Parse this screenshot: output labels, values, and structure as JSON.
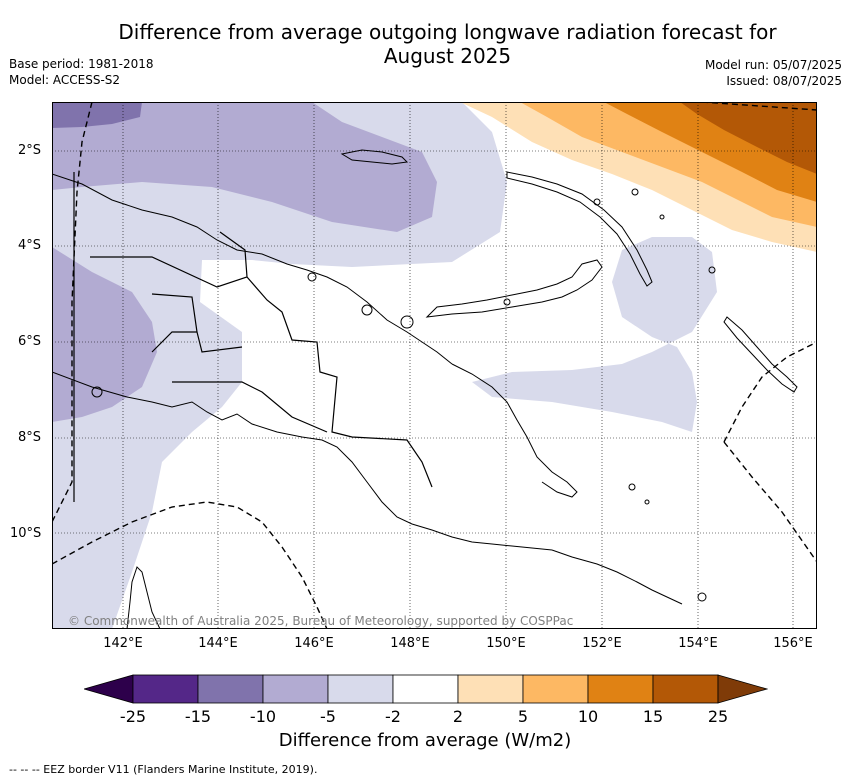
{
  "title_line1": "Difference from average outgoing longwave radiation forecast for",
  "title_line2": "August 2025",
  "base_period": "Base period: 1981-2018",
  "model": "Model: ACCESS-S2",
  "model_run": "Model run: 05/07/2025",
  "issued": "Issued: 08/07/2025",
  "lat_labels": [
    "2°S",
    "4°S",
    "6°S",
    "8°S",
    "10°S"
  ],
  "lon_labels": [
    "142°E",
    "144°E",
    "146°E",
    "148°E",
    "150°E",
    "152°E",
    "154°E",
    "156°E"
  ],
  "colorbar": {
    "title": "Difference from average (W/m2)",
    "ticks": [
      "-25",
      "-15",
      "-10",
      "-5",
      "-2",
      "2",
      "5",
      "10",
      "15",
      "25"
    ],
    "colors": [
      "#2d004b",
      "#542788",
      "#8073ac",
      "#b2abd2",
      "#d8daeb",
      "#ffffff",
      "#fee0b6",
      "#fdb863",
      "#e08214",
      "#b35806",
      "#7f3b08"
    ]
  },
  "credit": "© Commonwealth of Australia 2025, Bureau of Meteorology, supported by COSPPac",
  "footnote": "--  --  -- EEZ border V11 (Flanders Marine Institute, 2019)."
}
